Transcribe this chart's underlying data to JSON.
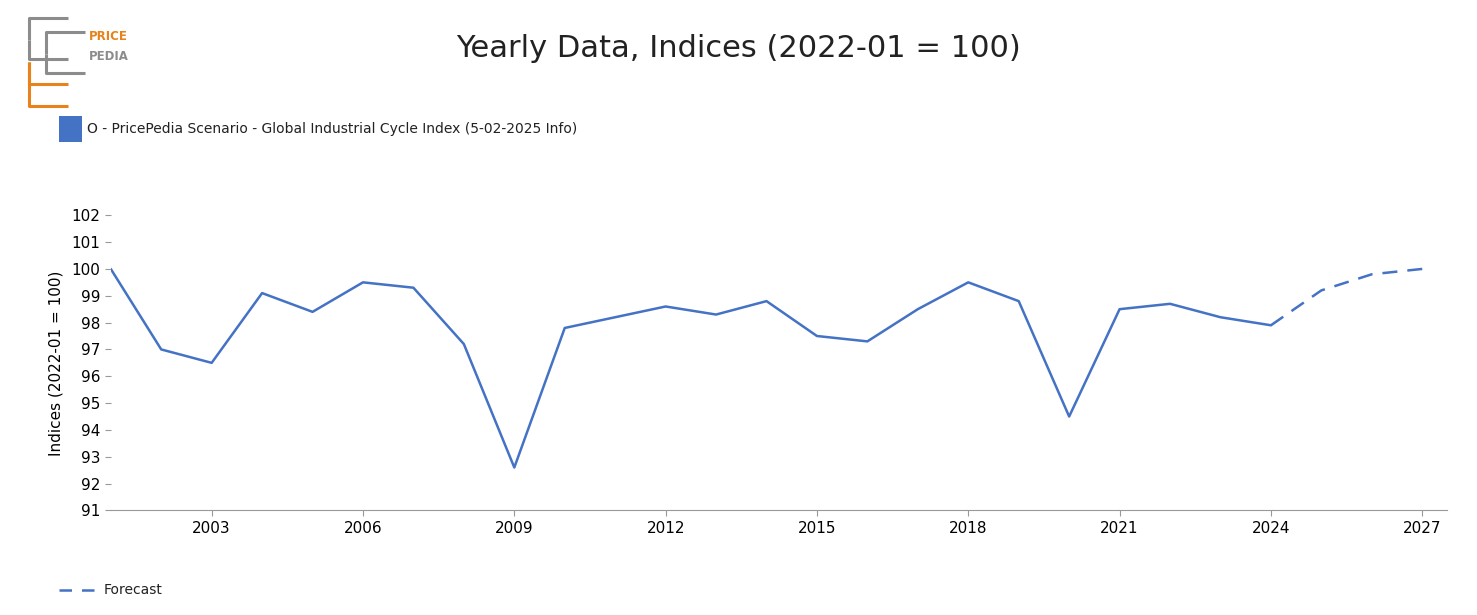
{
  "title": "Yearly Data, Indices (2022-01 = 100)",
  "ylabel": "Indices (2022-01 = 100)",
  "legend_label": "O - PricePedia Scenario - Global Industrial Cycle Index (5-02-2025 Info)",
  "line_color": "#4472C4",
  "line_width": 1.8,
  "ylim": [
    91,
    102
  ],
  "yticks": [
    91,
    92,
    93,
    94,
    95,
    96,
    97,
    98,
    99,
    100,
    101,
    102
  ],
  "solid_years": [
    2001,
    2002,
    2003,
    2004,
    2005,
    2006,
    2007,
    2008,
    2009,
    2010,
    2011,
    2012,
    2013,
    2014,
    2015,
    2016,
    2017,
    2018,
    2019,
    2020,
    2021,
    2022,
    2023,
    2024
  ],
  "solid_values": [
    100.0,
    97.0,
    96.5,
    99.1,
    98.4,
    99.5,
    99.3,
    97.2,
    92.6,
    97.8,
    98.2,
    98.6,
    98.3,
    98.8,
    97.5,
    97.3,
    98.5,
    99.5,
    98.8,
    94.5,
    98.5,
    98.7,
    98.2,
    97.9
  ],
  "dashed_years": [
    2024,
    2025,
    2026,
    2027
  ],
  "dashed_values": [
    97.9,
    99.2,
    99.8,
    100.0
  ],
  "forecast_label": "Forecast",
  "background_color": "#ffffff",
  "title_fontsize": 22,
  "axis_fontsize": 11,
  "tick_fontsize": 11,
  "xticks": [
    2003,
    2006,
    2009,
    2012,
    2015,
    2018,
    2021,
    2024,
    2027
  ],
  "xlim": [
    2001,
    2027.5
  ],
  "logo_gray": "#8c8c8c",
  "logo_orange": "#E8821A"
}
